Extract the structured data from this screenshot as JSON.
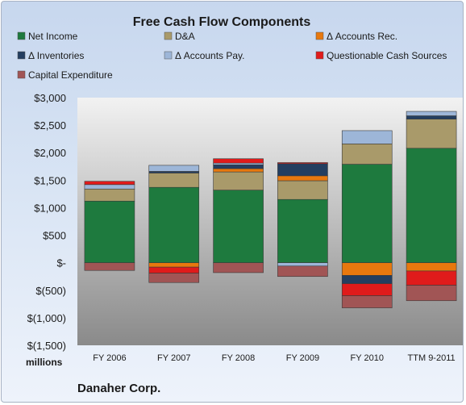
{
  "chart_data": {
    "type": "bar",
    "stacked": true,
    "title": "Free Cash Flow Components",
    "categories": [
      "FY 2006",
      "FY 2007",
      "FY 2008",
      "FY 2009",
      "FY 2010",
      "TTM 9-2011"
    ],
    "series": [
      {
        "name": "Net Income",
        "color": "#1e7a3e",
        "values": [
          1120,
          1370,
          1320,
          1150,
          1790,
          2080
        ]
      },
      {
        "name": "D&A",
        "color": "#a99a6a",
        "values": [
          220,
          260,
          330,
          340,
          370,
          530
        ]
      },
      {
        "name": "Δ Accounts Rec.",
        "color": "#e8780e",
        "values": [
          0,
          -80,
          60,
          90,
          -230,
          -150
        ]
      },
      {
        "name": "Δ Inventories",
        "color": "#243e60",
        "values": [
          0,
          30,
          70,
          220,
          -150,
          60
        ]
      },
      {
        "name": "Δ Accounts Pay.",
        "color": "#9db6d8",
        "values": [
          80,
          110,
          30,
          0,
          240,
          80
        ]
      },
      {
        "name": "Questionable Cash Sources",
        "color": "#e01b1b",
        "values": [
          60,
          -110,
          80,
          20,
          -220,
          -260
        ]
      },
      {
        "name": "Capital Expenditure",
        "color": "#a15555",
        "values": [
          -140,
          -170,
          -180,
          -190,
          -220,
          -280
        ]
      }
    ],
    "negative_extra": [
      {
        "series": "Δ Accounts Pay.",
        "values": [
          0,
          0,
          0,
          -60,
          0,
          0
        ]
      }
    ],
    "ylim": [
      -1500,
      3000
    ],
    "yticks": [
      3000,
      2500,
      2000,
      1500,
      1000,
      500,
      0,
      -500,
      -1000,
      -1500
    ],
    "ytick_labels": [
      "$3,000",
      "$2,500",
      "$2,000",
      "$1,500",
      "$1,000",
      "$500",
      "$-",
      "$(500)",
      "$(1,000)",
      "$(1,500)"
    ],
    "unit_label": "millions",
    "company": "Danaher Corp.",
    "legend_position": "top",
    "grid": false
  }
}
